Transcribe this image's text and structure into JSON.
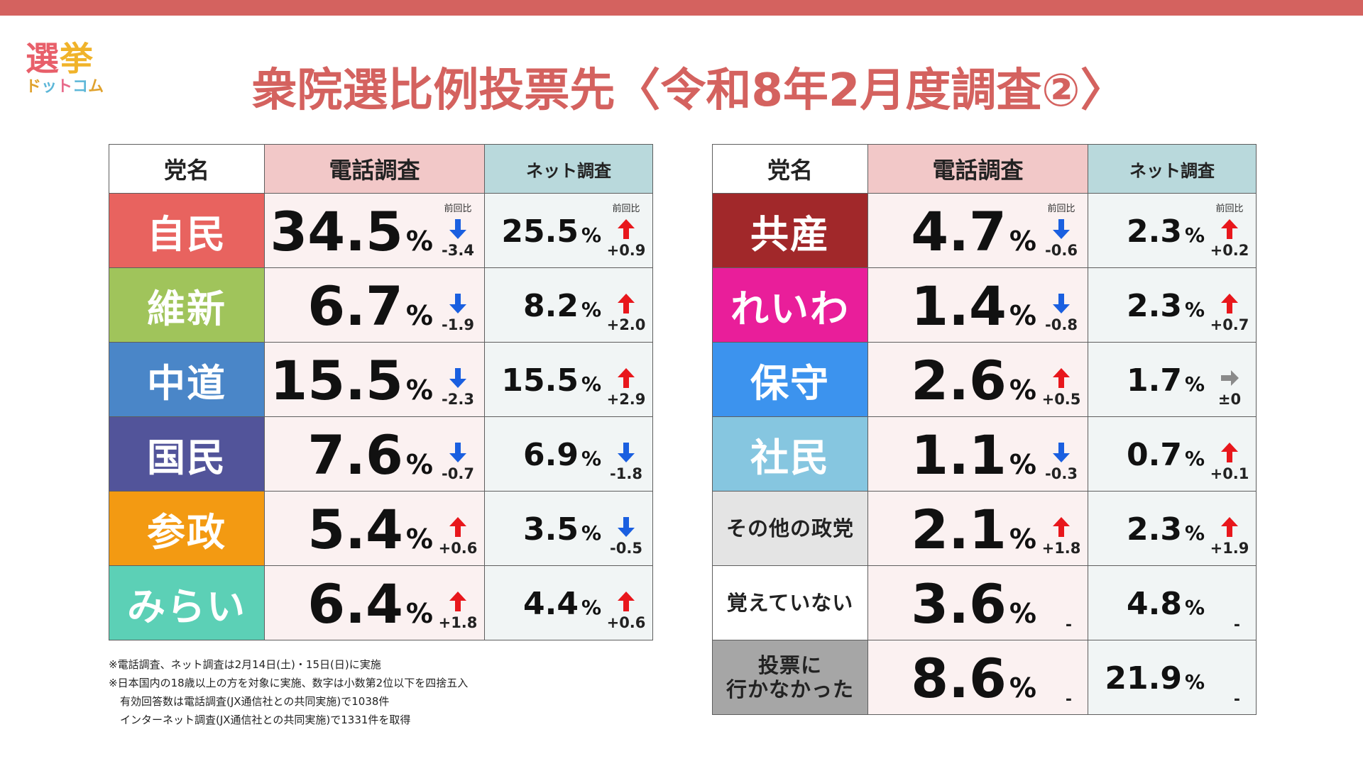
{
  "logo": {
    "text_top_1": "選",
    "text_top_2": "挙",
    "text_bottom": [
      "ド",
      "ッ",
      "ト",
      "コ",
      "ム"
    ]
  },
  "title": "衆院選比例投票先〈令和8年2月度調査②〉",
  "headers": {
    "party": "党名",
    "phone": "電話調査",
    "net": "ネット調査"
  },
  "change_label": "前回比",
  "percent": "%",
  "colors": {
    "accent": "#d4625f",
    "up_arrow": "#e8171c",
    "down_arrow": "#1a5fe0",
    "flat_arrow": "#8a8a8a"
  },
  "chart_data": {
    "type": "table",
    "title": "衆院選比例投票先〈令和8年2月度調査②〉",
    "columns": [
      "党名",
      "電話調査",
      "前回比",
      "ネット調査",
      "前回比"
    ],
    "left": [
      {
        "party": "自民",
        "color": "#e8635f",
        "phone": "34.5",
        "phone_chg": "-3.4",
        "phone_dir": "down",
        "net": "25.5",
        "net_chg": "+0.9",
        "net_dir": "up",
        "show_label": true
      },
      {
        "party": "維新",
        "color": "#a0c45b",
        "phone": "6.7",
        "phone_chg": "-1.9",
        "phone_dir": "down",
        "net": "8.2",
        "net_chg": "+2.0",
        "net_dir": "up"
      },
      {
        "party": "中道",
        "color": "#4a86c8",
        "phone": "15.5",
        "phone_chg": "-2.3",
        "phone_dir": "down",
        "net": "15.5",
        "net_chg": "+2.9",
        "net_dir": "up"
      },
      {
        "party": "国民",
        "color": "#52549a",
        "phone": "7.6",
        "phone_chg": "-0.7",
        "phone_dir": "down",
        "net": "6.9",
        "net_chg": "-1.8",
        "net_dir": "down"
      },
      {
        "party": "参政",
        "color": "#f39a12",
        "phone": "5.4",
        "phone_chg": "+0.6",
        "phone_dir": "up",
        "net": "3.5",
        "net_chg": "-0.5",
        "net_dir": "down"
      },
      {
        "party": "みらい",
        "color": "#5cd0b6",
        "phone": "6.4",
        "phone_chg": "+1.8",
        "phone_dir": "up",
        "net": "4.4",
        "net_chg": "+0.6",
        "net_dir": "up"
      }
    ],
    "right": [
      {
        "party": "共産",
        "color": "#a1282a",
        "phone": "4.7",
        "phone_chg": "-0.6",
        "phone_dir": "down",
        "net": "2.3",
        "net_chg": "+0.2",
        "net_dir": "up",
        "show_label": true
      },
      {
        "party": "れいわ",
        "color": "#e91e9a",
        "phone": "1.4",
        "phone_chg": "-0.8",
        "phone_dir": "down",
        "net": "2.3",
        "net_chg": "+0.7",
        "net_dir": "up"
      },
      {
        "party": "保守",
        "color": "#3c93ee",
        "phone": "2.6",
        "phone_chg": "+0.5",
        "phone_dir": "up",
        "net": "1.7",
        "net_chg": "±0",
        "net_dir": "flat"
      },
      {
        "party": "社民",
        "color": "#86c6e0",
        "phone": "1.1",
        "phone_chg": "-0.3",
        "phone_dir": "down",
        "net": "0.7",
        "net_chg": "+0.1",
        "net_dir": "up"
      },
      {
        "party": "その他の政党",
        "color": "#e4e4e4",
        "phone": "2.1",
        "phone_chg": "+1.8",
        "phone_dir": "up",
        "net": "2.3",
        "net_chg": "+1.9",
        "net_dir": "up",
        "small": true
      },
      {
        "party": "覚えていない",
        "color": "#ffffff",
        "phone": "3.6",
        "phone_chg": "-",
        "phone_dir": "none",
        "net": "4.8",
        "net_chg": "-",
        "net_dir": "none",
        "small": true
      },
      {
        "party": "投票に\n行かなかった",
        "color": "#a6a6a6",
        "phone": "8.6",
        "phone_chg": "-",
        "phone_dir": "none",
        "net": "21.9",
        "net_chg": "-",
        "net_dir": "none",
        "small": true
      }
    ]
  },
  "notes": [
    "※電話調査、ネット調査は2月14日(土)・15日(日)に実施",
    "※日本国内の18歳以上の方を対象に実施、数字は小数第2位以下を四捨五入",
    "有効回答数は電話調査(JX通信社との共同実施)で1038件",
    "インターネット調査(JX通信社との共同実施)で1331件を取得"
  ]
}
